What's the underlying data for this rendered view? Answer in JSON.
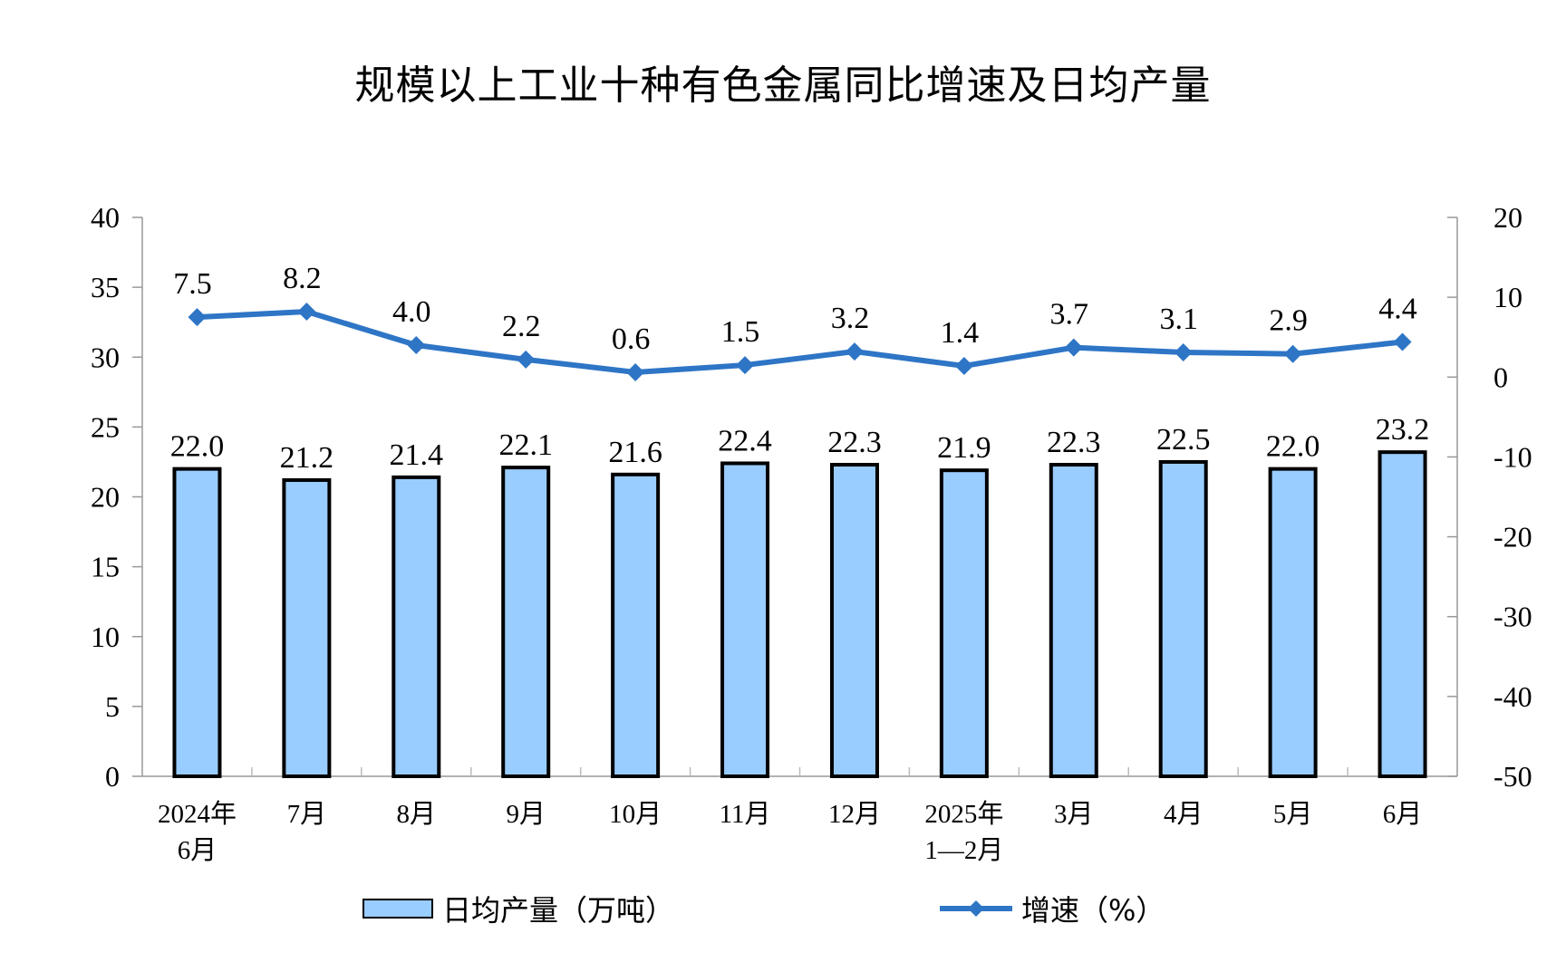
{
  "chart_data": {
    "type": "bar+line",
    "title": "规模以上工业十种有色金属同比增速及日均产量",
    "categories": [
      [
        "2024年",
        "6月"
      ],
      [
        "7月"
      ],
      [
        "8月"
      ],
      [
        "9月"
      ],
      [
        "10月"
      ],
      [
        "11月"
      ],
      [
        "12月"
      ],
      [
        "2025年",
        "1—2月"
      ],
      [
        "3月"
      ],
      [
        "4月"
      ],
      [
        "5月"
      ],
      [
        "6月"
      ]
    ],
    "series": [
      {
        "name": "日均产量（万吨）",
        "type": "bar",
        "axis": "left",
        "color": "#99ccff",
        "values": [
          22.0,
          21.2,
          21.4,
          22.1,
          21.6,
          22.4,
          22.3,
          21.9,
          22.3,
          22.5,
          22.0,
          23.2
        ],
        "labels": [
          "22.0",
          "21.2",
          "21.4",
          "22.1",
          "21.6",
          "22.4",
          "22.3",
          "21.9",
          "22.3",
          "22.5",
          "22.0",
          "23.2"
        ]
      },
      {
        "name": "增速（%）",
        "type": "line",
        "axis": "right",
        "color": "#2e75c6",
        "marker": "diamond",
        "values": [
          7.5,
          8.2,
          4.0,
          2.2,
          0.6,
          1.5,
          3.2,
          1.4,
          3.7,
          3.1,
          2.9,
          4.4
        ],
        "labels": [
          "7.5",
          "8.2",
          "4.0",
          "2.2",
          "0.6",
          "1.5",
          "3.2",
          "1.4",
          "3.7",
          "3.1",
          "2.9",
          "4.4"
        ]
      }
    ],
    "y_left": {
      "range": [
        0,
        40
      ],
      "ticks": [
        "0",
        "5",
        "10",
        "15",
        "20",
        "25",
        "30",
        "35",
        "40"
      ]
    },
    "y_right": {
      "range": [
        -50,
        20
      ],
      "ticks": [
        "-50",
        "-40",
        "-30",
        "-20",
        "-10",
        "0",
        "10",
        "20"
      ]
    },
    "grid": false,
    "legend_position": "bottom"
  }
}
